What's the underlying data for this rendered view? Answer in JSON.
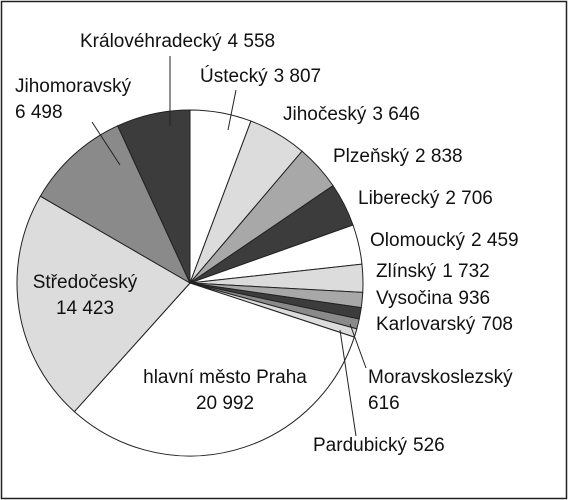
{
  "chart_data": {
    "type": "pie",
    "categories": [
      "Ústecký",
      "Jihočeský",
      "Plzeňský",
      "Liberecký",
      "Olomoucký",
      "Zlínský",
      "Vysočina",
      "Karlovarský",
      "Moravskoslezský",
      "Pardubický",
      "hlavní město Praha",
      "Středočeský",
      "Jihomoravský",
      "Královéhradecký"
    ],
    "values": [
      3807,
      3646,
      2838,
      2706,
      2459,
      1732,
      936,
      708,
      616,
      526,
      20992,
      14423,
      6498,
      4558
    ],
    "value_labels": [
      "3 807",
      "3 646",
      "2 838",
      "2 706",
      "2 459",
      "1 732",
      "936",
      "708",
      "616",
      "526",
      "20 992",
      "14 423",
      "6 498",
      "4 558"
    ],
    "colors": [
      "#ffffff",
      "#dcdcdc",
      "#a8a8a8",
      "#3c3c3c",
      "#ffffff",
      "#dcdcdc",
      "#a8a8a8",
      "#3c3c3c",
      "#8a8a8a",
      "#dcdcdc",
      "#ffffff",
      "#dcdcdc",
      "#8a8a8a",
      "#3c3c3c"
    ]
  }
}
